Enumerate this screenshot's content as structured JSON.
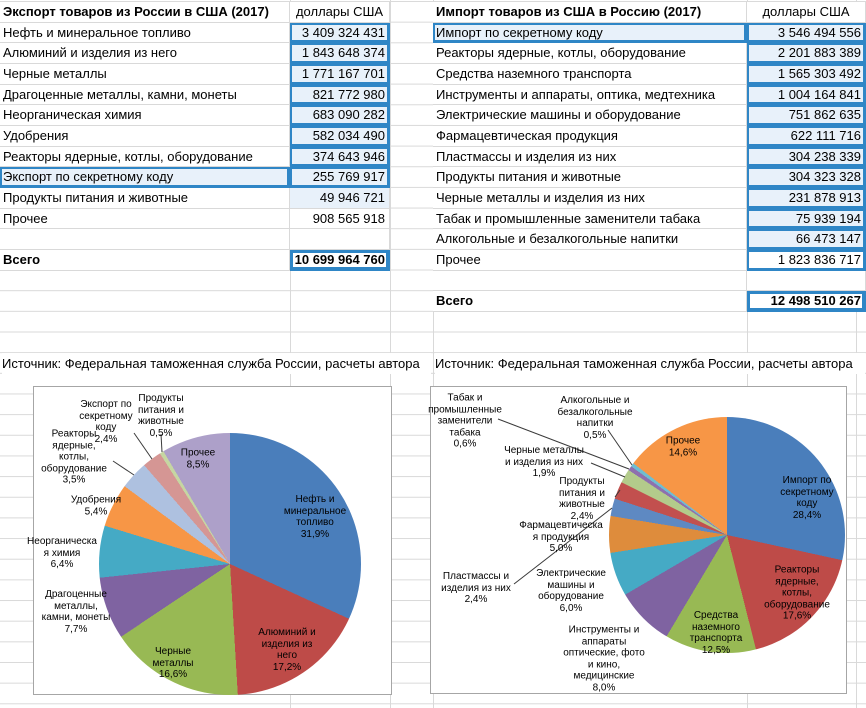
{
  "sheet": {
    "export_table": {
      "title": "Экспорт товаров из России в США (2017)",
      "unit": "доллары США",
      "rows": [
        {
          "label": "Нефть и минеральное топливо",
          "value": "3 409 324 431",
          "value_fill": true,
          "value_box": true
        },
        {
          "label": "Алюминий и изделия из него",
          "value": "1 843 648 374",
          "value_fill": true,
          "value_box": true
        },
        {
          "label": "Черные металлы",
          "value": "1 771 167 701",
          "value_fill": true,
          "value_box": true
        },
        {
          "label": "Драгоценные металлы, камни, монеты",
          "value": "821 772 980",
          "value_fill": true,
          "value_box": true
        },
        {
          "label": "Неорганическая химия",
          "value": "683 090 282",
          "value_fill": true,
          "value_box": true
        },
        {
          "label": "Удобрения",
          "value": "582 034 490",
          "value_fill": true,
          "value_box": true
        },
        {
          "label": "Реакторы ядерные, котлы, оборудование",
          "value": "374 643 946",
          "value_fill": true,
          "value_box": true
        },
        {
          "label": "Экспорт по секретному коду",
          "value": "255 769 917",
          "label_fill": true,
          "label_box": true,
          "value_fill": true,
          "value_box": true
        },
        {
          "label": "Продукты питания и животные",
          "value": "49 946 721",
          "value_fill": true
        },
        {
          "label": "Прочее",
          "value": "908 565 918"
        }
      ],
      "total_label": "Всего",
      "total_value": "10 699 964 760",
      "source": "Источник: Федеральная таможенная служба России, расчеты автора"
    },
    "import_table": {
      "title": "Импорт товаров из США в Россию (2017)",
      "unit": "доллары США",
      "rows": [
        {
          "label": "Импорт по секретному коду",
          "value": "3 546 494 556",
          "label_fill": true,
          "label_box": true,
          "value_fill": true,
          "value_box": true
        },
        {
          "label": "Реакторы ядерные, котлы, оборудование",
          "value": "2 201 883 389",
          "value_fill": true,
          "value_box": true
        },
        {
          "label": "Средства наземного транспорта",
          "value": "1 565 303 492",
          "value_fill": true,
          "value_box": true
        },
        {
          "label": "Инструменты и аппараты, оптика, медтехника",
          "value": "1 004 164 841",
          "value_fill": true,
          "value_box": true
        },
        {
          "label": "Электрические машины и оборудование",
          "value": "751 862 635",
          "value_fill": true,
          "value_box": true
        },
        {
          "label": "Фармацевтическая продукция",
          "value": "622 111 716",
          "value_fill": true,
          "value_box": true
        },
        {
          "label": "Пластмассы и изделия из них",
          "value": "304 238 339",
          "value_fill": true,
          "value_box": true
        },
        {
          "label": "Продукты питания и животные",
          "value": "304 323 328",
          "value_fill": true,
          "value_box": true
        },
        {
          "label": "Черные металлы и изделия из них",
          "value": "231 878 913",
          "value_fill": true,
          "value_box": true
        },
        {
          "label": " Табак и промышленные заменители табака",
          "value": "75 939 194",
          "value_fill": true,
          "value_box": true
        },
        {
          "label": "Алкогольные и безалкогольные напитки",
          "value": "66 473 147",
          "value_fill": true,
          "value_box": true
        },
        {
          "label": "Прочее",
          "value": "1 823 836 717",
          "value_box": true
        }
      ],
      "total_label": "Всего",
      "total_value": "12 498 510 267",
      "source": "Источник: Федеральная таможенная служба России, расчеты автора"
    }
  },
  "colors": {
    "cell_fill": "#e8f1fa",
    "cell_border": "#2f86c6",
    "gridline": "#d9d9d9",
    "chart_border": "#a6a6a6"
  },
  "chart_data": [
    {
      "type": "pie",
      "title": "",
      "legend": false,
      "slices": [
        {
          "label": "Нефть и минеральное топливо",
          "pct": 31.9,
          "text": "Нефть и\nминеральное\nтопливо\n31,9%",
          "color": "#4A7EBB"
        },
        {
          "label": "Алюминий и изделия из него",
          "pct": 17.2,
          "text": "Алюминий и\nизделия из\nнего\n17,2%",
          "color": "#BE4B48"
        },
        {
          "label": "Черные металлы",
          "pct": 16.6,
          "text": "Черные\nметаллы\n16,6%",
          "color": "#98B954"
        },
        {
          "label": "Драгоценные металлы, камни, монеты",
          "pct": 7.7,
          "text": "Драгоценные\nметаллы,\nкамни, монеты\n7,7%",
          "color": "#7F63A1"
        },
        {
          "label": "Неорганическая химия",
          "pct": 6.4,
          "text": "Неорганическа\nя химия\n6,4%",
          "color": "#45AAC5"
        },
        {
          "label": "Удобрения",
          "pct": 5.4,
          "text": "Удобрения\n5,4%",
          "color": "#F79646"
        },
        {
          "label": "Реакторы ядерные, котлы, оборудование",
          "pct": 3.5,
          "text": "Реакторы\nядерные,\nкотлы,\nоборудование\n3,5%",
          "color": "#AEC1E0"
        },
        {
          "label": "Экспорт по секретному коду",
          "pct": 2.4,
          "text": "Экспорт по\nсекретному\nкоду\n2,4%",
          "color": "#D59694"
        },
        {
          "label": "Продукты питания и животные",
          "pct": 0.5,
          "text": "Продукты\nпитания и\nживотные\n0,5%",
          "color": "#C6D6A2"
        },
        {
          "label": "Прочее",
          "pct": 8.5,
          "text": "Прочее\n8,5%",
          "color": "#ADA0C9"
        }
      ]
    },
    {
      "type": "pie",
      "title": "",
      "legend": false,
      "slices": [
        {
          "label": "Импорт по секретному коду",
          "pct": 28.4,
          "text": "Импорт по\nсекретному коду\n28,4%",
          "color": "#4A7EBB"
        },
        {
          "label": "Реакторы ядерные, котлы, оборудование",
          "pct": 17.6,
          "text": "Реакторы\nядерные, котлы,\nоборудование\n17,6%",
          "color": "#BE4B48"
        },
        {
          "label": "Средства наземного транспорта",
          "pct": 12.5,
          "text": "Средства\nназемного\nтранспорта\n12,5%",
          "color": "#98B954"
        },
        {
          "label": "Инструменты и аппараты оптические, фото и кино, медицинские",
          "pct": 8.0,
          "text": "Инструменты и\nаппараты\nоптические, фото\nи кино,\nмедицинские\n8,0%",
          "color": "#7F63A1"
        },
        {
          "label": "Электрические машины и оборудование",
          "pct": 6.0,
          "text": "Электрические\nмашины и\nоборудование\n6,0%",
          "color": "#45AAC5"
        },
        {
          "label": "Фармацевтическая продукция",
          "pct": 5.0,
          "text": "Фармацевтическа\nя продукция\n5,0%",
          "color": "#DE8C3C"
        },
        {
          "label": "Пластмассы и изделия из них",
          "pct": 2.4,
          "text": "Пластмассы и\nизделия из них\n2,4%",
          "color": "#5E89C2"
        },
        {
          "label": "Продукты питания и животные",
          "pct": 2.4,
          "text": "Продукты\nпитания и\nживотные\n2,4%",
          "color": "#C2504E"
        },
        {
          "label": "Черные металлы и изделия из них",
          "pct": 1.9,
          "text": "Черные металлы\nи изделия из них\n1,9%",
          "color": "#B3CB8B"
        },
        {
          "label": "Табак и промышленные заменители табака",
          "pct": 0.6,
          "text": "Табак и\nпромышленные\nзаменители\nтабака\n0,6%",
          "color": "#8E70AE"
        },
        {
          "label": "Алкогольные и безалкогольные напитки",
          "pct": 0.5,
          "text": "Алкогольные и\nбезалкогольные\nнапитки\n0,5%",
          "color": "#6FBDD1"
        },
        {
          "label": "Прочее",
          "pct": 14.6,
          "text": "Прочее\n14,6%",
          "color": "#F79646"
        }
      ]
    }
  ]
}
